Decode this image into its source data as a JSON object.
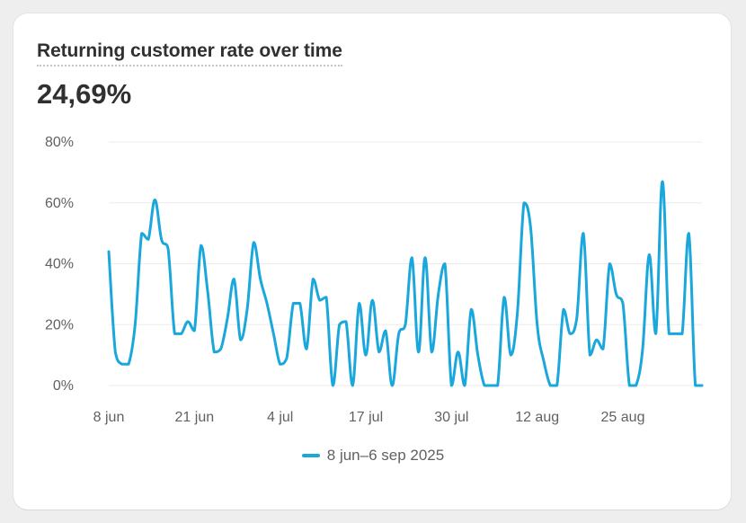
{
  "card": {
    "title": "Returning customer rate over time",
    "metric_value": "24,69%"
  },
  "colors": {
    "series": "#1aa7dc",
    "grid": "#ebebeb",
    "text": "#303030",
    "muted": "#616161"
  },
  "chart_data": {
    "type": "line",
    "title": "Returning customer rate over time",
    "xlabel": "",
    "ylabel": "",
    "ylim": [
      0,
      80
    ],
    "grid": true,
    "legend_placement": "bottom-center",
    "y_ticks": [
      {
        "value": 0,
        "label": "0%"
      },
      {
        "value": 20,
        "label": "20%"
      },
      {
        "value": 40,
        "label": "40%"
      },
      {
        "value": 60,
        "label": "60%"
      },
      {
        "value": 80,
        "label": "80%"
      }
    ],
    "x_ticks": [
      {
        "index": 0,
        "label": "8 jun"
      },
      {
        "index": 13,
        "label": "21 jun"
      },
      {
        "index": 26,
        "label": "4 jul"
      },
      {
        "index": 39,
        "label": "17 jul"
      },
      {
        "index": 52,
        "label": "30 jul"
      },
      {
        "index": 65,
        "label": "12 aug"
      },
      {
        "index": 78,
        "label": "25 aug"
      }
    ],
    "series": [
      {
        "name": "8 jun–6 sep 2025",
        "values": [
          44,
          11,
          7,
          7,
          20,
          50,
          48,
          61,
          48,
          45,
          17,
          17,
          21,
          18,
          46,
          31,
          11,
          12,
          22,
          35,
          15,
          25,
          47,
          35,
          27,
          17,
          7,
          9,
          27,
          27,
          12,
          35,
          28,
          29,
          0,
          20,
          21,
          0,
          27,
          10,
          28,
          11,
          18,
          0,
          17,
          20,
          42,
          11,
          42,
          11,
          30,
          40,
          0,
          11,
          0,
          25,
          10,
          0,
          0,
          0,
          29,
          10,
          24,
          60,
          52,
          20,
          8,
          0,
          0,
          25,
          17,
          22,
          50,
          10,
          15,
          12,
          40,
          30,
          27,
          0,
          0,
          12,
          43,
          17,
          67,
          17,
          17,
          17,
          50,
          0,
          0
        ]
      }
    ]
  }
}
